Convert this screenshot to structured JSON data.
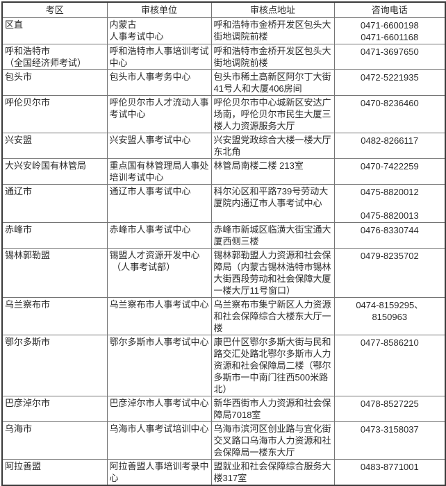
{
  "table": {
    "headers": [
      "考区",
      "审核单位",
      "审核点地址",
      "咨询电话"
    ],
    "rows": [
      {
        "area": "区直",
        "unit": "内蒙古\n人事考试中心",
        "address": "呼和浩特市金桥开发区包头大街地调院前楼",
        "phone": "0471-6600198\n0471-6601168"
      },
      {
        "area": "呼和浩特市\n（全国经济师考试）",
        "unit": "呼和浩特市人事培训考试中心",
        "address": "呼和浩特市金桥开发区包头大街地调院前楼",
        "phone": "0471-3697650"
      },
      {
        "area": "包头市",
        "unit": "包头市人事考务中心",
        "address": "包头市稀土高新区阿尔丁大街41号人和大厦406房间",
        "phone": "0472-5221935"
      },
      {
        "area": "呼伦贝尔市",
        "unit": "呼伦贝尔市人才流动人事考试中心",
        "address": "呼伦贝尔市中心城新区安达广场南，呼伦贝尔市民生大厦三楼人力资源服务大厅",
        "phone": "0470-8236460"
      },
      {
        "area": "兴安盟",
        "unit": "兴安盟人事考试中心",
        "address": "兴安盟党政综合大楼一楼大厅东北角",
        "phone": "0482-8266117"
      },
      {
        "area": "大兴安岭国有林管局",
        "unit": "重点国有林管理局人事处培训考试中心",
        "address": "林管局南楼二楼 213室",
        "phone": "0470-7422259"
      },
      {
        "area": "通辽市",
        "unit": "通辽市人事考试中心",
        "address": "科尔沁区和平路739号劳动大厦院内通辽市人事考试中心",
        "phone": "0475-8820012\n\n0475-8820013"
      },
      {
        "area": "赤峰市",
        "unit": "赤峰市人事考试中心",
        "address": "赤峰市新城区临潢大街宝通大厦西侧三楼",
        "phone": "0476-8330744"
      },
      {
        "area": "锡林郭勒盟",
        "unit": "锡盟人才资源开发中心\n （人事考试部）",
        "address": "锡林郭勒盟人力资源和社会保障局（内蒙古锡林浩特市锡林大街西段劳动和社会保障大厦一楼大厅11号窗口）",
        "phone": "0479-8235702"
      },
      {
        "area": "乌兰察布市",
        "unit": "乌兰察布市人事考试中心",
        "address": "乌兰察布市集宁新区人力资源和社会保障综合大楼东大厅一楼",
        "phone": "0474-8159295、\n8150963"
      },
      {
        "area": "鄂尔多斯市",
        "unit": "鄂尔多斯市人事考试中心",
        "address": "康巴什区鄂尔多斯大街与民和路交汇处路北鄂尔多斯市人力资源和社会保障局二楼（鄂尔多斯市一中南门往西500米路北）",
        "phone": "0477-8586210"
      },
      {
        "area": "巴彦淖尔市",
        "unit": "巴彦淖尔市人事考试中心",
        "address": "新华西街市人力资源和社会保障局7018室",
        "phone": "0478-8527225"
      },
      {
        "area": "乌海市",
        "unit": "乌海市人事考试培训中心",
        "address": "乌海市滨河区创业路与宜化街交叉路口乌海市人力资源和社会保障局一楼东大厅",
        "phone": "0473-3158037"
      },
      {
        "area": "阿拉善盟",
        "unit": "阿拉善盟人事培训考录中心",
        "address": "盟就业和社会保障综合服务大楼317室",
        "phone": "0483-8771001"
      }
    ]
  },
  "colors": {
    "background": "#ffffff",
    "border_outer": "#3a3a3a",
    "border_inner": "#757575",
    "text": "#2b2b2b"
  }
}
